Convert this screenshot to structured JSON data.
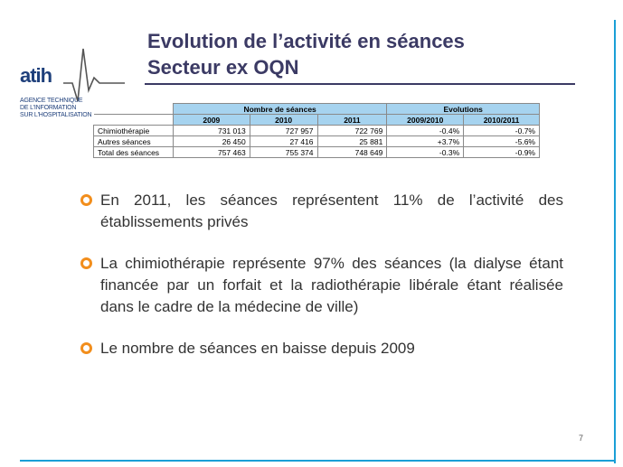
{
  "slide": {
    "title_line1": "Evolution de l’activité en séances",
    "title_line2": "Secteur ex OQN",
    "page_number": "7"
  },
  "logo": {
    "name": "atih",
    "subtitle": "AGENCE TECHNIQUE\nDE L'INFORMATION\nSUR L'HOSPITALISATION"
  },
  "table": {
    "group_headers": [
      "Nombre de séances",
      "Evolutions"
    ],
    "year_headers": [
      "2009",
      "2010",
      "2011",
      "2009/2010",
      "2010/2011"
    ],
    "rows": [
      {
        "label": "Chimiothérapie",
        "v2009": "731 013",
        "v2010": "727 957",
        "v2011": "722 769",
        "e0910": "-0.4%",
        "e1011": "-0.7%"
      },
      {
        "label": "Autres séances",
        "v2009": "26 450",
        "v2010": "27 416",
        "v2011": "25 881",
        "e0910": "+3.7%",
        "e1011": "-5.6%"
      },
      {
        "label": "Total des séances",
        "v2009": "757 463",
        "v2010": "755 374",
        "v2011": "748 649",
        "e0910": "-0.3%",
        "e1011": "-0.9%"
      }
    ]
  },
  "bullets": [
    "En 2011, les séances représentent 11% de l’activité des établissements privés",
    "La chimiothérapie représente 97% des séances (la dialyse étant financée par un forfait et la radiothérapie libérale étant réalisée dans le cadre de la médecine de ville)",
    "Le nombre de séances en baisse depuis 2009"
  ],
  "colors": {
    "accent_blue": "#1a9fd6",
    "title": "#3b3a64",
    "bullet_orange": "#f28e1c",
    "table_header": "#a6d3ef"
  }
}
